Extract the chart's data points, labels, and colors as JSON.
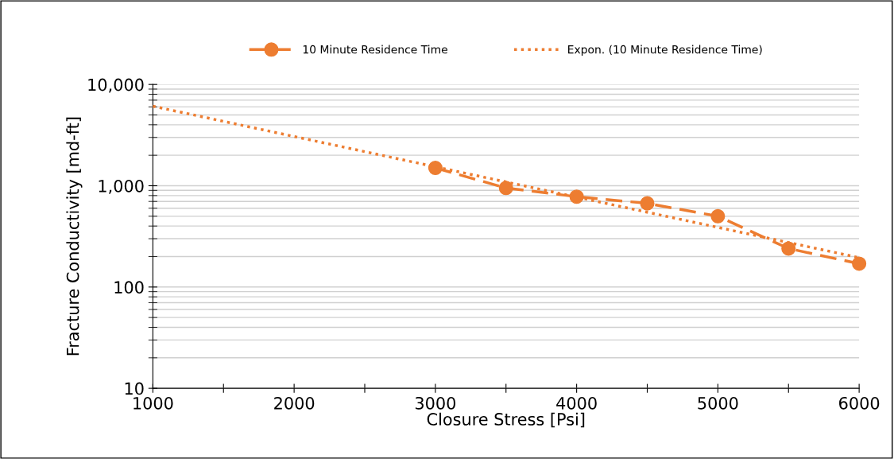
{
  "chart_data": {
    "type": "line",
    "xlabel": "Closure Stress [Psi]",
    "ylabel": "Fracture Conductivity [md-ft]",
    "log": "y",
    "grid": "y",
    "legend": "top",
    "xlim": [
      1000,
      6000
    ],
    "xticks": [
      1000,
      {
        "value": 1500,
        "label": null
      },
      2000,
      {
        "value": 2500,
        "label": null
      },
      3000,
      {
        "value": 3500,
        "label": null
      },
      4000,
      {
        "value": 4500,
        "label": null
      },
      5000,
      {
        "value": 5500,
        "label": null
      },
      6000
    ],
    "ylim": [
      10,
      10000
    ],
    "yticks": [
      10,
      100,
      {
        "value": 1000,
        "label": "1,000"
      },
      {
        "value": 10000,
        "label": "10,000"
      }
    ],
    "series": [
      {
        "name": "10 Minute Residence Time",
        "color": "#ed7d31",
        "marker": "circle",
        "line_style": "dashed",
        "x": [
          3000,
          3500,
          4000,
          4500,
          5000,
          5500,
          6000
        ],
        "values": [
          1500,
          950,
          780,
          670,
          500,
          240,
          170
        ]
      },
      {
        "name": "Expon. (10 Minute Residence Time)",
        "color": "#ed7d31",
        "marker": "none",
        "line_style": "dotted",
        "x": [
          1000,
          6000
        ],
        "values": [
          6100,
          195
        ]
      }
    ]
  }
}
